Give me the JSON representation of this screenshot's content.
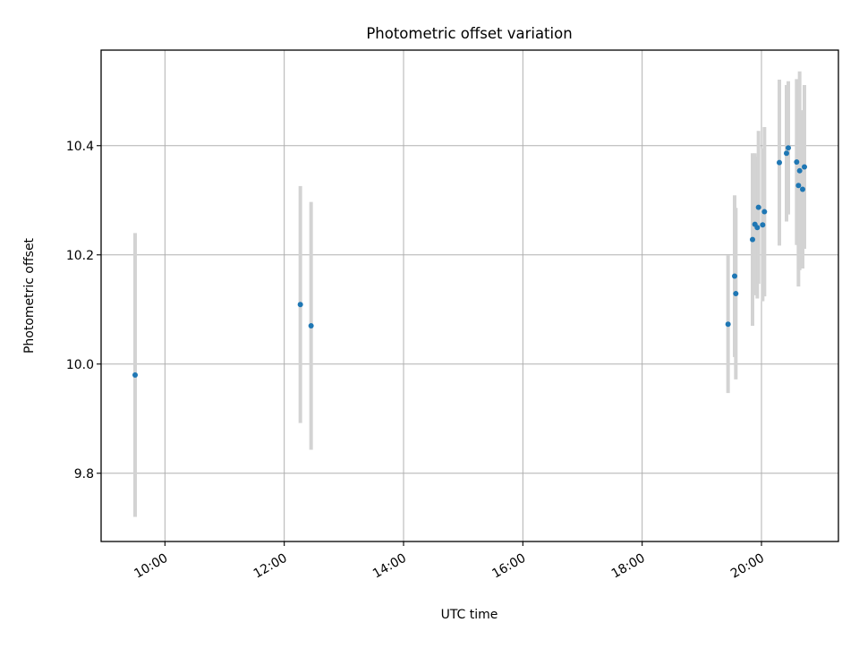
{
  "chart_data": {
    "type": "scatter",
    "title": "Photometric offset variation",
    "xlabel": "UTC time",
    "ylabel": "Photometric offset",
    "x_tick_labels": [
      "10:00",
      "12:00",
      "14:00",
      "16:00",
      "18:00",
      "20:00"
    ],
    "x_ticks_hours": [
      10,
      12,
      14,
      16,
      18,
      20
    ],
    "y_ticks": [
      9.8,
      10.0,
      10.2,
      10.4
    ],
    "y_tick_labels": [
      "9.8",
      "10.0",
      "10.2",
      "10.4"
    ],
    "xlim_hours": [
      8.93,
      21.29
    ],
    "ylim": [
      9.675,
      10.575
    ],
    "grid": true,
    "marker_color": "#1f77b4",
    "errorbar_color": "#d3d3d3",
    "points": [
      {
        "time": "09:30",
        "hours": 9.5,
        "y": 9.98,
        "err": 0.26
      },
      {
        "time": "12:16",
        "hours": 12.27,
        "y": 10.109,
        "err": 0.217
      },
      {
        "time": "12:27",
        "hours": 12.45,
        "y": 10.07,
        "err": 0.227
      },
      {
        "time": "19:26",
        "hours": 19.44,
        "y": 10.073,
        "err": 0.126
      },
      {
        "time": "19:33",
        "hours": 19.55,
        "y": 10.161,
        "err": 0.148
      },
      {
        "time": "19:34",
        "hours": 19.57,
        "y": 10.129,
        "err": 0.157
      },
      {
        "time": "19:51",
        "hours": 19.85,
        "y": 10.228,
        "err": 0.158
      },
      {
        "time": "19:53",
        "hours": 19.89,
        "y": 10.256,
        "err": 0.13
      },
      {
        "time": "19:56",
        "hours": 19.93,
        "y": 10.25,
        "err": 0.13
      },
      {
        "time": "19:57",
        "hours": 19.95,
        "y": 10.287,
        "err": 0.14
      },
      {
        "time": "20:01",
        "hours": 20.02,
        "y": 10.255,
        "err": 0.14
      },
      {
        "time": "20:03",
        "hours": 20.05,
        "y": 10.279,
        "err": 0.155
      },
      {
        "time": "20:18",
        "hours": 20.3,
        "y": 10.369,
        "err": 0.152
      },
      {
        "time": "20:25",
        "hours": 20.42,
        "y": 10.386,
        "err": 0.125
      },
      {
        "time": "20:27",
        "hours": 20.45,
        "y": 10.396,
        "err": 0.122
      },
      {
        "time": "20:35",
        "hours": 20.59,
        "y": 10.37,
        "err": 0.152
      },
      {
        "time": "20:37",
        "hours": 20.62,
        "y": 10.327,
        "err": 0.185
      },
      {
        "time": "20:38",
        "hours": 20.64,
        "y": 10.354,
        "err": 0.182
      },
      {
        "time": "20:41",
        "hours": 20.69,
        "y": 10.32,
        "err": 0.145
      },
      {
        "time": "20:43",
        "hours": 20.72,
        "y": 10.361,
        "err": 0.15
      }
    ]
  }
}
